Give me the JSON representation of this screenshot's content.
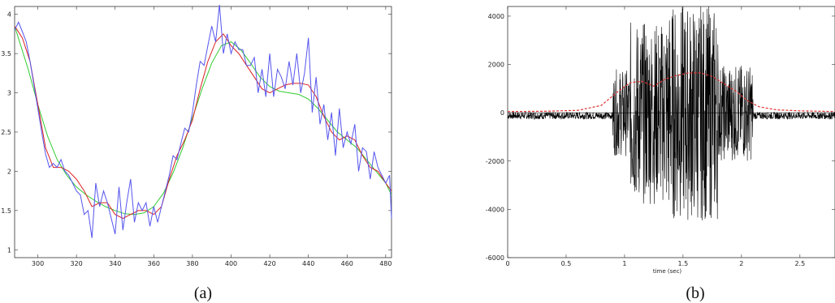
{
  "chart_data": [
    {
      "type": "line",
      "caption": "(a)",
      "xlim": [
        288,
        483
      ],
      "ylim": [
        0.9,
        4.1
      ],
      "xticks": [
        300,
        320,
        340,
        360,
        380,
        400,
        420,
        440,
        460,
        480
      ],
      "yticks": [
        1,
        1.5,
        2,
        2.5,
        3,
        3.5,
        4
      ],
      "series": [
        {
          "color": "#5555ee",
          "x": [
            288,
            290,
            292,
            294,
            296,
            298,
            300,
            302,
            304,
            306,
            308,
            310,
            312,
            314,
            316,
            318,
            320,
            322,
            324,
            326,
            328,
            330,
            332,
            334,
            336,
            338,
            340,
            342,
            344,
            346,
            348,
            350,
            352,
            354,
            356,
            358,
            360,
            362,
            364,
            366,
            368,
            370,
            372,
            374,
            376,
            378,
            380,
            382,
            384,
            386,
            388,
            390,
            392,
            394,
            396,
            398,
            400,
            402,
            404,
            406,
            408,
            410,
            412,
            414,
            416,
            418,
            420,
            422,
            424,
            426,
            428,
            430,
            432,
            434,
            436,
            438,
            440,
            442,
            444,
            446,
            448,
            450,
            452,
            454,
            456,
            458,
            460,
            462,
            464,
            466,
            468,
            470,
            472,
            474,
            476,
            478,
            480,
            482,
            483
          ],
          "y": [
            3.8,
            3.9,
            3.78,
            3.65,
            3.4,
            3.1,
            2.8,
            2.5,
            2.22,
            2.05,
            2.1,
            2.05,
            2.15,
            2.0,
            1.95,
            1.85,
            1.75,
            1.7,
            1.45,
            1.5,
            1.15,
            1.85,
            1.55,
            1.75,
            1.6,
            1.4,
            1.2,
            1.8,
            1.25,
            1.6,
            1.9,
            1.35,
            1.6,
            1.5,
            1.6,
            1.3,
            1.55,
            1.35,
            1.55,
            1.75,
            1.95,
            2.2,
            2.15,
            2.35,
            2.55,
            2.5,
            2.75,
            3.1,
            3.4,
            3.35,
            3.6,
            3.85,
            3.65,
            4.12,
            3.5,
            3.75,
            3.5,
            3.65,
            3.55,
            3.55,
            3.35,
            3.35,
            3.45,
            3.0,
            3.3,
            2.95,
            3.5,
            2.95,
            3.3,
            3.2,
            3.05,
            3.4,
            3.1,
            3.5,
            3.0,
            3.25,
            3.7,
            2.75,
            3.2,
            2.6,
            2.85,
            2.4,
            2.75,
            2.2,
            2.8,
            2.3,
            2.5,
            2.35,
            2.6,
            2.0,
            2.3,
            2.25,
            1.9,
            2.25,
            2.05,
            1.95,
            1.85,
            1.95,
            1.4
          ]
        },
        {
          "color": "#dd2222",
          "x": [
            288,
            292,
            296,
            300,
            304,
            308,
            312,
            316,
            320,
            324,
            328,
            332,
            336,
            340,
            344,
            348,
            352,
            356,
            360,
            364,
            368,
            372,
            376,
            380,
            384,
            388,
            392,
            396,
            400,
            404,
            408,
            412,
            416,
            420,
            424,
            428,
            432,
            436,
            440,
            444,
            448,
            452,
            456,
            460,
            464,
            468,
            472,
            476,
            480,
            483
          ],
          "y": [
            3.85,
            3.7,
            3.4,
            2.85,
            2.3,
            2.05,
            2.05,
            2.0,
            1.9,
            1.75,
            1.55,
            1.6,
            1.6,
            1.45,
            1.4,
            1.45,
            1.5,
            1.5,
            1.45,
            1.55,
            1.9,
            2.2,
            2.4,
            2.65,
            3.05,
            3.4,
            3.65,
            3.75,
            3.6,
            3.5,
            3.35,
            3.2,
            3.05,
            3.0,
            3.05,
            3.1,
            3.12,
            3.12,
            3.1,
            2.95,
            2.7,
            2.5,
            2.4,
            2.45,
            2.4,
            2.2,
            2.05,
            2.0,
            1.85,
            1.75
          ]
        },
        {
          "color": "#33cc33",
          "x": [
            288,
            295,
            300,
            305,
            310,
            315,
            320,
            325,
            330,
            335,
            340,
            345,
            350,
            355,
            360,
            365,
            370,
            375,
            380,
            385,
            390,
            395,
            400,
            405,
            410,
            415,
            420,
            425,
            430,
            435,
            440,
            445,
            450,
            455,
            460,
            465,
            470,
            475,
            480,
            483
          ],
          "y": [
            3.85,
            3.3,
            2.85,
            2.45,
            2.15,
            1.95,
            1.8,
            1.7,
            1.62,
            1.55,
            1.5,
            1.46,
            1.45,
            1.47,
            1.55,
            1.72,
            1.98,
            2.3,
            2.68,
            3.05,
            3.38,
            3.6,
            3.65,
            3.55,
            3.38,
            3.2,
            3.08,
            3.02,
            3.0,
            2.98,
            2.92,
            2.8,
            2.65,
            2.5,
            2.4,
            2.3,
            2.15,
            2.0,
            1.85,
            1.7
          ]
        }
      ]
    },
    {
      "type": "line",
      "caption": "(b)",
      "xlabel": "time (sec)",
      "xlim": [
        0,
        2.8
      ],
      "ylim": [
        -6000,
        4400
      ],
      "xticks": [
        0,
        0.5,
        1,
        1.5,
        2,
        2.5
      ],
      "yticks": [
        -6000,
        -4000,
        -2000,
        0,
        2000,
        4000
      ],
      "series": [
        {
          "color": "#000000",
          "style": "noisy-signal",
          "segments": [
            [
              0,
              0.9,
              150
            ],
            [
              0.9,
              1.05,
              1800
            ],
            [
              1.05,
              1.35,
              3800
            ],
            [
              1.35,
              1.8,
              4500
            ],
            [
              1.8,
              2.1,
              2000
            ],
            [
              2.1,
              2.8,
              150
            ]
          ]
        },
        {
          "color": "#e03030",
          "style": "dashed-envelope",
          "x": [
            0,
            0.3,
            0.6,
            0.8,
            0.95,
            1.05,
            1.15,
            1.25,
            1.35,
            1.45,
            1.55,
            1.65,
            1.75,
            1.85,
            1.95,
            2.05,
            2.15,
            2.3,
            2.5,
            2.8
          ],
          "y": [
            50,
            60,
            100,
            300,
            900,
            1250,
            1300,
            1100,
            1400,
            1550,
            1650,
            1650,
            1500,
            1200,
            900,
            500,
            250,
            120,
            80,
            50
          ]
        }
      ]
    }
  ]
}
